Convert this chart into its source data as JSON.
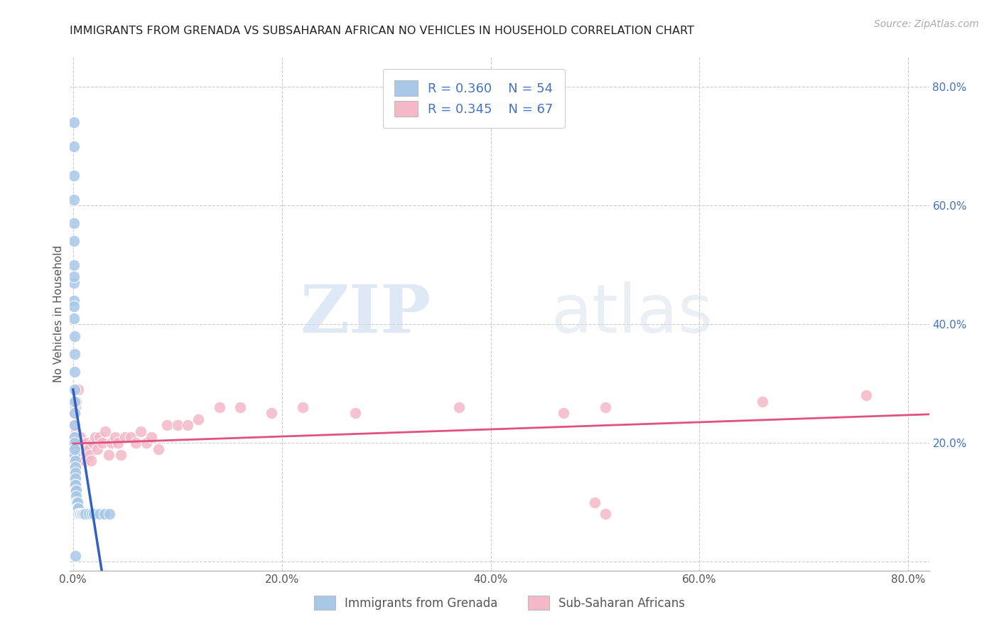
{
  "title": "IMMIGRANTS FROM GRENADA VS SUBSAHARAN AFRICAN NO VEHICLES IN HOUSEHOLD CORRELATION CHART",
  "source": "Source: ZipAtlas.com",
  "ylabel": "No Vehicles in Household",
  "watermark_zip": "ZIP",
  "watermark_atlas": "atlas",
  "blue_R": 0.36,
  "blue_N": 54,
  "pink_R": 0.345,
  "pink_N": 67,
  "blue_color": "#a8c8e8",
  "pink_color": "#f4b8c8",
  "blue_line_color": "#3060c0",
  "pink_line_color": "#e05080",
  "legend_blue_label": "Immigrants from Grenada",
  "legend_pink_label": "Sub-Saharan Africans",
  "xlim": [
    -0.003,
    0.82
  ],
  "ylim": [
    -0.015,
    0.85
  ],
  "blue_x": [
    0.0008,
    0.0008,
    0.0009,
    0.0009,
    0.001,
    0.001,
    0.001,
    0.001,
    0.001,
    0.001,
    0.0012,
    0.0012,
    0.0013,
    0.0013,
    0.0014,
    0.0015,
    0.0015,
    0.0015,
    0.0016,
    0.0017,
    0.0018,
    0.002,
    0.002,
    0.002,
    0.002,
    0.002,
    0.0022,
    0.0023,
    0.0025,
    0.003,
    0.003,
    0.003,
    0.0035,
    0.004,
    0.004,
    0.0045,
    0.005,
    0.005,
    0.006,
    0.007,
    0.008,
    0.009,
    0.01,
    0.012,
    0.015,
    0.018,
    0.02,
    0.025,
    0.03,
    0.035,
    0.001,
    0.001,
    0.0015,
    0.002
  ],
  "blue_y": [
    0.74,
    0.7,
    0.65,
    0.61,
    0.57,
    0.54,
    0.5,
    0.47,
    0.44,
    0.41,
    0.38,
    0.35,
    0.32,
    0.29,
    0.27,
    0.25,
    0.23,
    0.21,
    0.2,
    0.19,
    0.18,
    0.17,
    0.16,
    0.15,
    0.14,
    0.13,
    0.13,
    0.12,
    0.12,
    0.12,
    0.11,
    0.1,
    0.1,
    0.1,
    0.09,
    0.09,
    0.09,
    0.08,
    0.08,
    0.08,
    0.08,
    0.08,
    0.08,
    0.08,
    0.08,
    0.08,
    0.08,
    0.08,
    0.08,
    0.08,
    0.48,
    0.43,
    0.19,
    0.01
  ],
  "pink_x": [
    0.0008,
    0.001,
    0.001,
    0.001,
    0.001,
    0.0012,
    0.0013,
    0.0015,
    0.0015,
    0.002,
    0.002,
    0.002,
    0.0022,
    0.003,
    0.003,
    0.004,
    0.004,
    0.005,
    0.005,
    0.006,
    0.007,
    0.007,
    0.008,
    0.009,
    0.009,
    0.01,
    0.011,
    0.012,
    0.013,
    0.014,
    0.015,
    0.016,
    0.017,
    0.019,
    0.021,
    0.023,
    0.025,
    0.028,
    0.031,
    0.034,
    0.037,
    0.04,
    0.043,
    0.046,
    0.05,
    0.055,
    0.06,
    0.065,
    0.07,
    0.075,
    0.082,
    0.09,
    0.1,
    0.11,
    0.12,
    0.14,
    0.16,
    0.19,
    0.22,
    0.27,
    0.37,
    0.47,
    0.51,
    0.66,
    0.76,
    0.5,
    0.51
  ],
  "pink_y": [
    0.25,
    0.23,
    0.21,
    0.19,
    0.17,
    0.16,
    0.15,
    0.14,
    0.13,
    0.26,
    0.2,
    0.18,
    0.16,
    0.27,
    0.22,
    0.19,
    0.17,
    0.29,
    0.19,
    0.19,
    0.21,
    0.18,
    0.2,
    0.18,
    0.17,
    0.18,
    0.18,
    0.17,
    0.2,
    0.19,
    0.19,
    0.18,
    0.17,
    0.2,
    0.21,
    0.19,
    0.21,
    0.2,
    0.22,
    0.18,
    0.2,
    0.21,
    0.2,
    0.18,
    0.21,
    0.21,
    0.2,
    0.22,
    0.2,
    0.21,
    0.19,
    0.23,
    0.23,
    0.23,
    0.24,
    0.26,
    0.26,
    0.25,
    0.26,
    0.25,
    0.26,
    0.25,
    0.26,
    0.27,
    0.28,
    0.1,
    0.08
  ]
}
